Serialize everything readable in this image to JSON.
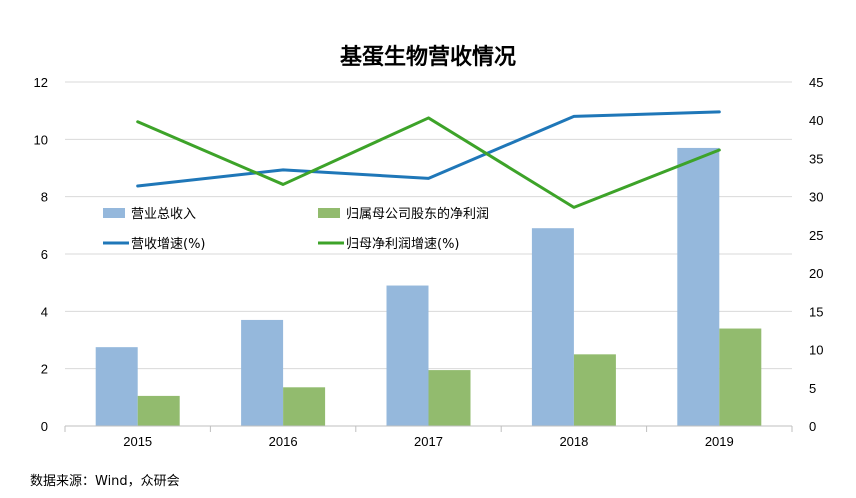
{
  "chart_data": {
    "type": "bar",
    "title": "基蛋生物营收情况",
    "categories": [
      "2015",
      "2016",
      "2017",
      "2018",
      "2019"
    ],
    "series": [
      {
        "name": "营业总收入",
        "type": "bar",
        "axis": "left",
        "color": "#95b8dc",
        "values": [
          2.75,
          3.7,
          4.9,
          6.9,
          9.7
        ]
      },
      {
        "name": "归属母公司股东的净利润",
        "type": "bar",
        "axis": "left",
        "color": "#92bb6e",
        "values": [
          1.05,
          1.35,
          1.95,
          2.5,
          3.4
        ]
      },
      {
        "name": "营收增速(%)",
        "type": "line",
        "axis": "right",
        "color": "#1f77b8",
        "values": [
          31.4,
          33.5,
          32.4,
          40.5,
          41.1
        ]
      },
      {
        "name": "归母净利润增速(%)",
        "type": "line",
        "axis": "right",
        "color": "#3da329",
        "values": [
          39.8,
          31.6,
          40.3,
          28.6,
          36.1
        ]
      }
    ],
    "left_axis": {
      "ylim": [
        0,
        12
      ],
      "ticks": [
        "0",
        "2",
        "4",
        "6",
        "8",
        "10",
        "12"
      ]
    },
    "right_axis": {
      "ylim": [
        0,
        45
      ],
      "ticks": [
        "0",
        "5",
        "10",
        "15",
        "20",
        "25",
        "30",
        "35",
        "40",
        "45"
      ]
    },
    "grid": true,
    "legend_placement": "inside-left"
  },
  "source": "数据来源：Wind，众研会"
}
